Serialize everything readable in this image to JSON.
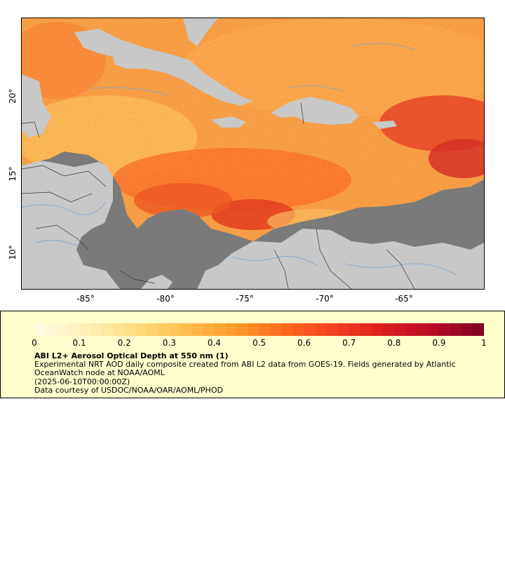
{
  "map": {
    "x_ticks": [
      "-85°",
      "-80°",
      "-75°",
      "-70°",
      "-65°"
    ],
    "y_ticks": [
      "20°",
      "15°",
      "10°"
    ],
    "colors": {
      "land": "#c8c8c8",
      "no_data": "#7a7a7a",
      "rivers": "#6ea6d8",
      "borders": "#333333"
    }
  },
  "legend": {
    "colorbar_ticks": [
      "0",
      "0.1",
      "0.2",
      "0.3",
      "0.4",
      "0.5",
      "0.6",
      "0.7",
      "0.8",
      "0.9",
      "1"
    ],
    "colorbar_colors": [
      "#fffde8",
      "#fff0b8",
      "#ffdc80",
      "#ffc050",
      "#ff9a2e",
      "#ff6a1e",
      "#f44020",
      "#dc1c1c",
      "#b80c28",
      "#7a0022"
    ],
    "title": "ABI L2+ Aerosol Optical Depth at 550 nm (1)",
    "description": "Experimental NRT AOD daily composite created from ABI L2 data from GOES-19. Fields generated by Atlantic OceanWatch node at NOAA/AOML",
    "date": "(2025-06-10T00:00:00Z)",
    "credit": "Data courtesy of USDOC/NOAA/OAR/AOML/PHOD"
  }
}
